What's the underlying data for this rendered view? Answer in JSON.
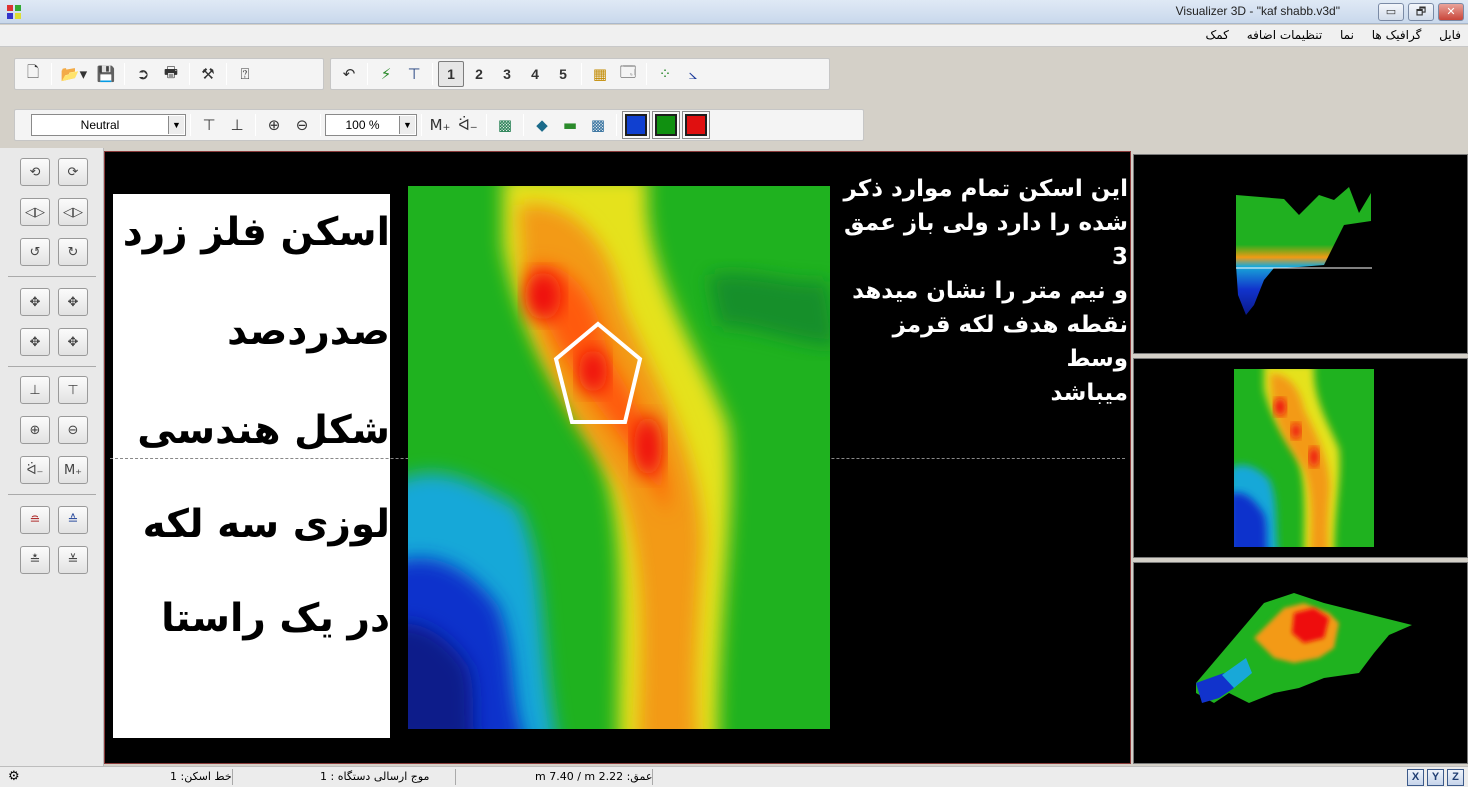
{
  "window": {
    "title": "Visualizer 3D - \"kaf shabb.v3d\"",
    "controls": [
      "minimize",
      "maximize",
      "close"
    ]
  },
  "menu": [
    "فایل",
    "گرافیک ها",
    "نما",
    "تنظیمات اضافه",
    "کمک"
  ],
  "toolbar1": {
    "numbers": [
      "1",
      "2",
      "3",
      "4",
      "5"
    ],
    "active_number": "1",
    "icons": [
      "new-file-icon",
      "open-folder-icon",
      "save-icon",
      "export-icon",
      "print-icon",
      "tools-icon",
      "help-icon",
      "undo-icon",
      "filter-icon",
      "magnet-icon",
      "grid-icon",
      "preview-icon",
      "scatter-icon",
      "graph-icon"
    ]
  },
  "toolbar2": {
    "palette_value": "Neutral",
    "zoom_value": "100 %",
    "colors": [
      "#1040d0",
      "#109010",
      "#e01010"
    ]
  },
  "overlay_text": {
    "left_lines": [
      "اسکن فلز زرد",
      "صدردصد",
      "شکل هندسی",
      "لوزی سه لکه",
      "در یک راستا"
    ],
    "right_lines": [
      "این اسکن تمام موارد ذکر",
      "شده را دارد ولی باز عمق 3",
      "و نیم متر را نشان میدهد",
      "نقطه هدف لکه قرمز وسط",
      "میباشد"
    ]
  },
  "status": {
    "scan_line": "خط اسکن: 1",
    "device_wave": "موج ارسالی دستگاه : 1",
    "depth": "عمق: m 7.40 / m 2.22",
    "axes": [
      "X",
      "Y",
      "Z"
    ]
  },
  "colors": {
    "viewport_bg": "#000000",
    "viewport_border": "#8a3a3a",
    "pentagon": "#ffffff"
  }
}
